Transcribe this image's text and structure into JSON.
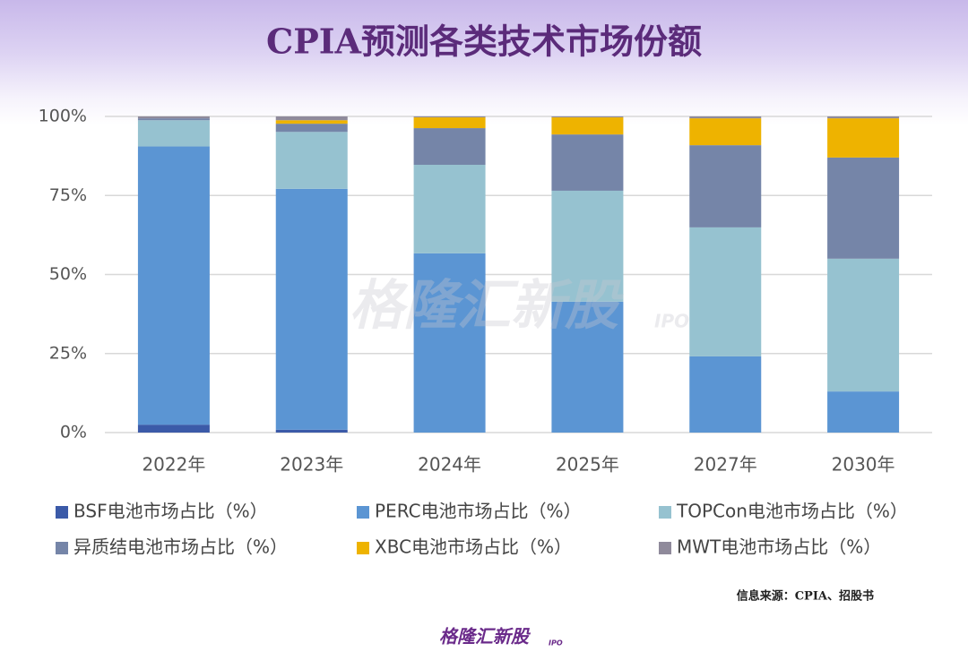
{
  "chart_data": {
    "type": "stacked_bar",
    "title": "CPIA预测各类技术市场份额",
    "categories": [
      "2022年",
      "2023年",
      "2024年",
      "2025年",
      "2027年",
      "2030年"
    ],
    "series": [
      {
        "name": "BSF电池市场占比（%）",
        "color": "#3b5aa8",
        "values": [
          2.5,
          0.9,
          0,
          0,
          0,
          0
        ]
      },
      {
        "name": "PERC电池市场占比（%）",
        "color": "#5b95d3",
        "values": [
          88.0,
          76.2,
          56.7,
          41.4,
          24.1,
          13.0
        ]
      },
      {
        "name": "TOPCon电池市场占比（%）",
        "color": "#96c2d0",
        "values": [
          8.3,
          18.0,
          28.0,
          35.1,
          40.8,
          42.0
        ]
      },
      {
        "name": "异质结电池市场占比（%）",
        "color": "#7585a8",
        "values": [
          0.6,
          2.6,
          11.6,
          17.8,
          26.0,
          32.0
        ]
      },
      {
        "name": "XBC电池市场占比（%）",
        "color": "#eeb300",
        "values": [
          0,
          1.1,
          3.4,
          5.4,
          8.5,
          12.4
        ]
      },
      {
        "name": "MWT电池市场占比（%）",
        "color": "#8f8a9b",
        "values": [
          0.6,
          1.2,
          0.3,
          0.3,
          0.6,
          0.6
        ]
      }
    ],
    "ylim": [
      0,
      100
    ],
    "yticks": [
      {
        "value": 0,
        "label": "0%"
      },
      {
        "value": 25,
        "label": "25%"
      },
      {
        "value": 50,
        "label": "50%"
      },
      {
        "value": 75,
        "label": "75%"
      },
      {
        "value": 100,
        "label": "100%"
      }
    ],
    "grid": true,
    "source": "信息来源：CPIA、招股书",
    "watermark": "格隆汇新股",
    "watermark_sub": "IPO"
  }
}
